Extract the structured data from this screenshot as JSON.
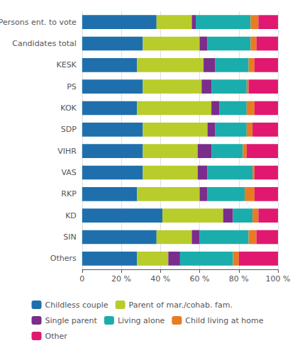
{
  "chart_data": {
    "type": "bar",
    "orientation": "horizontal",
    "stacked": true,
    "categories": [
      "Persons ent. to vote",
      "Candidates total",
      "KESK",
      "PS",
      "KOK",
      "SDP",
      "VIHR",
      "VAS",
      "RKP",
      "KD",
      "SIN",
      "Others"
    ],
    "series": [
      {
        "name": "Childless couple",
        "color": "#1f6fad",
        "values": [
          38,
          31,
          28,
          31,
          28,
          31,
          31,
          31,
          28,
          41,
          38,
          28
        ]
      },
      {
        "name": "Parent of mar./cohab. fam.",
        "color": "#b8cc2c",
        "values": [
          18,
          29,
          34,
          30,
          38,
          33,
          28,
          28,
          32,
          31,
          18,
          16
        ]
      },
      {
        "name": "Single parent",
        "color": "#7b2d8b",
        "values": [
          2,
          4,
          6,
          5,
          4,
          4,
          7,
          5,
          4,
          5,
          4,
          6
        ]
      },
      {
        "name": "Living alone",
        "color": "#1aadab",
        "values": [
          28,
          22,
          17,
          18,
          14,
          16,
          16,
          23,
          19,
          10,
          25,
          27
        ]
      },
      {
        "name": "Child living at home",
        "color": "#e87c21",
        "values": [
          4,
          3,
          3,
          1,
          4,
          3,
          2,
          1,
          5,
          3,
          4,
          3
        ]
      },
      {
        "name": "Other",
        "color": "#e01870",
        "values": [
          10,
          11,
          12,
          15,
          12,
          13,
          16,
          12,
          12,
          10,
          11,
          20
        ]
      }
    ],
    "xlim": [
      0,
      100
    ],
    "xticks": [
      0,
      {
        "value": 20,
        "label": "20 %"
      },
      {
        "value": 40,
        "label": "40 %"
      },
      {
        "value": 60,
        "label": "60 %"
      },
      {
        "value": 80,
        "label": "80 %"
      },
      {
        "value": 100,
        "label": "100 %"
      }
    ],
    "grid": true,
    "legend": "bottom"
  }
}
